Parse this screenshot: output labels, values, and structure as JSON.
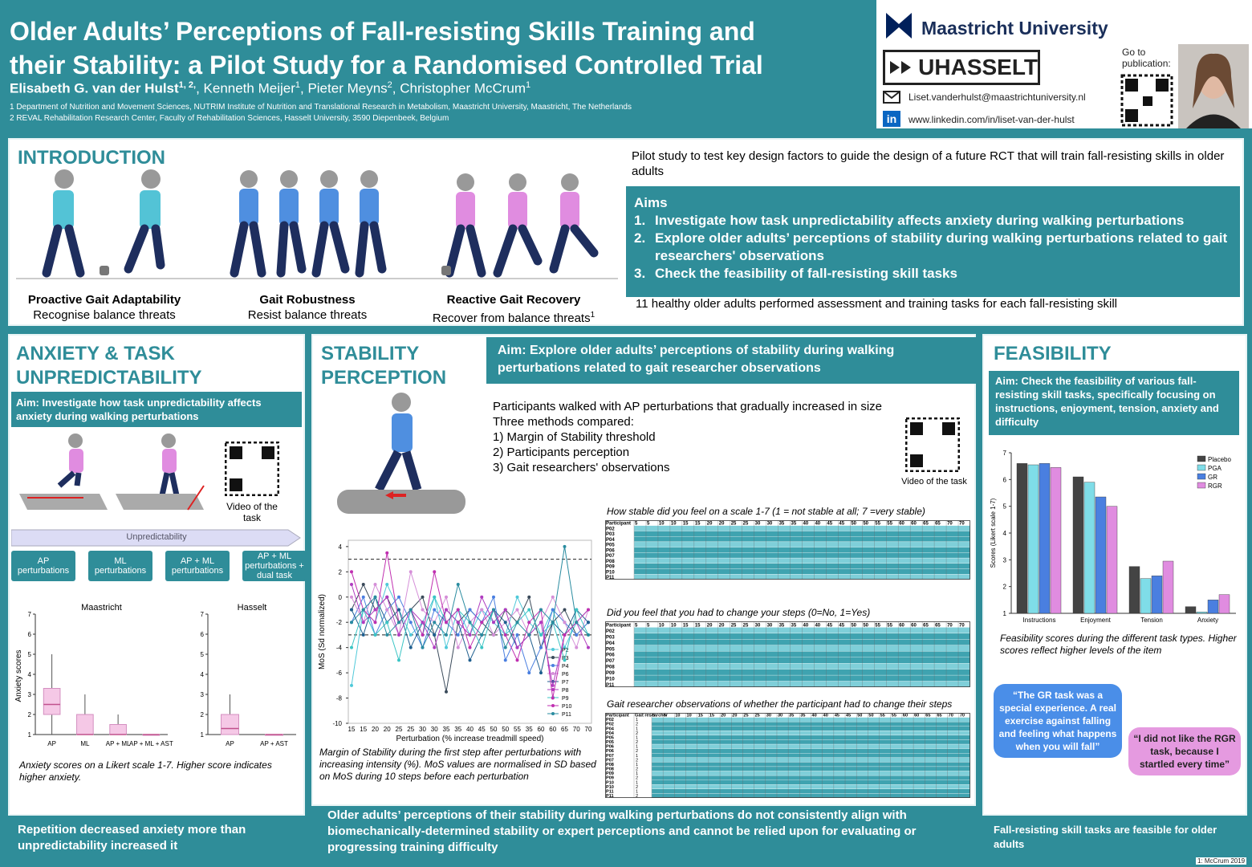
{
  "header": {
    "title": [
      "Older Adults’ Perceptions of Fall-resisting Skills Training and",
      "their Stability: a Pilot Study for a Randomised Controlled Trial"
    ],
    "authors": [
      {
        "name": "Elisabeth G. van der Hulst",
        "affiliation": "1, 2,"
      },
      {
        "name": ", Kenneth Meijer",
        "affiliation": "1"
      },
      {
        "name": ", Pieter Meyns",
        "affiliation": "2"
      },
      {
        "name": ", Christopher McCrum",
        "affiliation": "1"
      }
    ],
    "affiliations": [
      "1 Department of Nutrition and Movement Sciences, NUTRIM Institute of Nutrition and Translational Research in Metabolism, Maastricht University, Maastricht, The Netherlands",
      "2 REVAL Rehabilitation Research Center, Faculty of Rehabilitation Sciences, Hasselt University, 3590 Diepenbeek, Belgium"
    ],
    "logo_maastricht": "Maastricht University",
    "logo_hasselt": "UHASSELT",
    "email": "Liset.vanderhulst@maastrichtuniversity.nl",
    "linkedin_icon": "in",
    "linkedin": "www.linkedin.com/in/liset-van-der-hulst",
    "publication": "Go to publication:"
  },
  "introduction": {
    "heading": "INTRODUCTION",
    "skills": [
      {
        "name": "Proactive Gait Adaptability",
        "description": "Recognise balance threats"
      },
      {
        "name": "Gait Robustness",
        "description": "Resist balance threats"
      },
      {
        "name": "Reactive Gait Recovery",
        "description": "Recover from balance threats",
        "reference": "1"
      }
    ],
    "pilot": "Pilot study to test key design factors to guide the design of a future RCT that will train fall-resisting skills in older adults",
    "aims_heading": "Aims",
    "aims": [
      {
        "number": "1.",
        "text": "Investigate how task unpredictability affects anxiety during walking perturbations"
      },
      {
        "number": "2.",
        "text": "Explore older adults’ perceptions of stability during walking perturbations related to gait researchers' observations"
      },
      {
        "number": "3.",
        "text": "Check the feasibility of fall-resisting skill tasks"
      }
    ],
    "participants": "11 healthy older adults performed assessment and training tasks for each fall-resisting skill"
  },
  "anxiety": {
    "heading": "ANXIETY & TASK UNPREDICTABILITY",
    "aim": "Aim: Investigate how task unpredictability affects anxiety during walking perturbations",
    "video": "Video of the task",
    "unpredictability": "Unpredictability",
    "steps": [
      "AP perturbations",
      "ML perturbations",
      "AP + ML perturbations",
      "AP + ML perturbations + dual task"
    ],
    "ylabel": "Anxiety scores",
    "charts": [
      {
        "type": "box",
        "title": "Maastricht",
        "categories": [
          "AP",
          "ML",
          "AP + ML",
          "AP + ML + AST"
        ],
        "ylim": [
          1,
          7
        ],
        "yticks": [
          1,
          2,
          3,
          4,
          5,
          6,
          7
        ],
        "boxes": [
          {
            "min": 1,
            "q1": 2,
            "median": 2.5,
            "q3": 3.3,
            "max": 5
          },
          {
            "min": 1,
            "q1": 1,
            "median": 1,
            "q3": 2,
            "max": 3
          },
          {
            "min": 1,
            "q1": 1,
            "median": 1,
            "q3": 1.5,
            "max": 2
          },
          {
            "min": 1,
            "q1": 1,
            "median": 1,
            "q3": 1,
            "max": 1
          }
        ]
      },
      {
        "type": "box",
        "title": "Hasselt",
        "categories": [
          "AP",
          "AP + AST"
        ],
        "ylim": [
          1,
          7
        ],
        "yticks": [
          1,
          2,
          3,
          4,
          5,
          6,
          7
        ],
        "boxes": [
          {
            "min": 1,
            "q1": 1,
            "median": 1.3,
            "q3": 2,
            "max": 3
          },
          {
            "min": 1,
            "q1": 1,
            "median": 1,
            "q3": 1,
            "max": 1
          }
        ]
      }
    ],
    "caption": "Anxiety scores on a Likert scale 1-7. Higher score indicates higher anxiety.",
    "conclusion": "Repetition decreased anxiety more than unpredictability increased it"
  },
  "stability": {
    "heading": "STABILITY PERCEPTION",
    "aim": "Aim: Explore older adults’ perceptions of stability during walking perturbations related to gait researcher observations",
    "description": [
      "Participants walked with AP perturbations that gradually increased in size",
      "Three methods compared:",
      "1) Margin of Stability threshold",
      "2) Participants perception",
      "3) Gait researchers' observations"
    ],
    "video": "Video of the task",
    "chart": {
      "type": "line",
      "xlabel": "Perturbation (% increase treadmill speed)",
      "ylabel": "MoS (Sd normalized)",
      "categories": [
        "15",
        "15",
        "20",
        "20",
        "25",
        "25",
        "30",
        "30",
        "35",
        "35",
        "40",
        "45",
        "50",
        "50",
        "55",
        "35",
        "60",
        "60",
        "65",
        "70",
        "70"
      ],
      "ylim": [
        -10,
        4.5
      ],
      "yticks": [
        4,
        2,
        0,
        -2,
        -4,
        -6,
        -8,
        -10
      ],
      "thresholds": [
        3,
        -3
      ],
      "series": [
        {
          "name": "P2",
          "color": "#4fc9d9",
          "values": [
            -7,
            -1,
            -2,
            1,
            -1,
            -3,
            -2,
            0,
            -4,
            -1,
            -3,
            -1,
            -2,
            -3,
            0,
            -2,
            -3,
            -1,
            -4,
            -2,
            -1
          ]
        },
        {
          "name": "P3",
          "color": "#3a4a5a",
          "values": [
            -1,
            1,
            -1,
            0,
            -2,
            -1,
            0,
            -3,
            -7.5,
            -2,
            -1,
            -2,
            -3,
            -1,
            -2,
            0,
            -4,
            -2,
            -1,
            -3,
            -2
          ]
        },
        {
          "name": "P4",
          "color": "#4a7fe0",
          "values": [
            -2,
            0,
            -3,
            -1,
            0,
            -2,
            -4,
            -1,
            -2,
            -3,
            -1,
            -2,
            0,
            -5,
            -3,
            -6,
            -4,
            -1,
            -2,
            -3,
            -2
          ]
        },
        {
          "name": "P6",
          "color": "#d58fd8",
          "values": [
            0,
            -2,
            1,
            -1,
            -3,
            2,
            -1,
            -2,
            0,
            -4,
            -2,
            -1,
            -3,
            -2,
            -1,
            -3,
            -2,
            0,
            -2,
            -4,
            -1
          ]
        },
        {
          "name": "P7",
          "color": "#1f5f8f",
          "values": [
            -1,
            -3,
            0,
            -2,
            -1,
            -4,
            -2,
            -3,
            -1,
            -2,
            -5,
            -3,
            -1,
            -2,
            -4,
            -3,
            -6,
            -2,
            -3,
            -1,
            -2
          ]
        },
        {
          "name": "P8",
          "color": "#b03cc0",
          "values": [
            1,
            -2,
            -1,
            0,
            -3,
            -1,
            -2,
            -4,
            -1,
            -2,
            -3,
            0,
            -2,
            -1,
            -4,
            -3,
            -2,
            -7,
            -3,
            -2,
            -4
          ]
        },
        {
          "name": "P9",
          "color": "#3bc5c5",
          "values": [
            -4,
            -1,
            -3,
            -2,
            -5,
            -1,
            -3,
            0,
            -2,
            -1,
            -2,
            -4,
            -1,
            -3,
            -2,
            -1,
            -3,
            -2,
            -5,
            -1,
            -3
          ]
        },
        {
          "name": "P10",
          "color": "#c02fb0",
          "values": [
            2,
            -1,
            -2,
            3.5,
            -2,
            -1,
            -3,
            2,
            -2,
            -1,
            -4,
            -2,
            -1,
            -3,
            -5,
            -2,
            -1,
            -8,
            -3,
            -2,
            -1
          ]
        },
        {
          "name": "P11",
          "color": "#2a8ca0",
          "values": [
            -2,
            -1,
            0,
            -3,
            -2,
            -1,
            -4,
            -2,
            -3,
            1,
            -2,
            -3,
            -1,
            -4,
            -2,
            -3,
            -1,
            -2,
            4,
            -2,
            -3
          ]
        }
      ]
    },
    "caption": "Margin of Stability during the first step after perturbations with increasing intensity (%). MoS values are normalised in SD based on MoS during 10 steps before each perturbation",
    "tables": [
      {
        "title": "How stable did you feel on a scale 1-7 (1 = not stable at all; 7 =very stable)",
        "columns": [
          "Participant",
          "5",
          "5",
          "10",
          "10",
          "15",
          "15",
          "20",
          "20",
          "25",
          "25",
          "30",
          "30",
          "35",
          "35",
          "40",
          "40",
          "45",
          "45",
          "50",
          "50",
          "55",
          "55",
          "60",
          "60",
          "65",
          "65",
          "70",
          "70"
        ],
        "rows": [
          "P02",
          "P03",
          "P04",
          "P05",
          "P06",
          "P07",
          "P08",
          "P09",
          "P10",
          "P11"
        ]
      },
      {
        "title": "Did you feel that you had to change your steps (0=No, 1=Yes)",
        "columns": [
          "Participant",
          "5",
          "5",
          "10",
          "10",
          "15",
          "15",
          "20",
          "20",
          "25",
          "25",
          "30",
          "30",
          "35",
          "35",
          "40",
          "40",
          "45",
          "45",
          "50",
          "50",
          "55",
          "55",
          "60",
          "60",
          "65",
          "65",
          "70",
          "70"
        ],
        "rows": [
          "P02",
          "P03",
          "P04",
          "P05",
          "P06",
          "P07",
          "P08",
          "P09",
          "P10",
          "P11"
        ]
      },
      {
        "title": "Gait researcher observations of whether the participant had to change their steps",
        "columns": [
          "Participant",
          "Gait researcher",
          "5",
          "5",
          "10",
          "10",
          "15",
          "15",
          "20",
          "20",
          "25",
          "25",
          "30",
          "30",
          "35",
          "35",
          "40",
          "40",
          "45",
          "45",
          "50",
          "50",
          "55",
          "55",
          "60",
          "60",
          "65",
          "65",
          "70",
          "70"
        ],
        "rows": [
          "P02",
          "P02",
          "P04",
          "P04",
          "P05",
          "P05",
          "P06",
          "P06",
          "P07",
          "P07",
          "P08",
          "P08",
          "P09",
          "P09",
          "P10",
          "P10",
          "P11",
          "P11"
        ],
        "researchers": [
          "1",
          "2",
          "1",
          "2",
          "1",
          "2",
          "1",
          "2",
          "1",
          "2",
          "1",
          "2",
          "1",
          "2",
          "1",
          "2",
          "1",
          "2"
        ]
      }
    ],
    "conclusion": "Older adults’ perceptions of their stability during walking perturbations do not consistently align with biomechanically-determined stability or expert perceptions and cannot be relied upon for evaluating or progressing training difficulty"
  },
  "feasibility": {
    "heading": "FEASIBILITY",
    "aim": "Aim: Check the feasibility of various fall-resisting skill tasks, specifically focusing on instructions, enjoyment, tension, anxiety and difficulty",
    "chart": {
      "type": "bar",
      "ylabel": "Scores (Likert scale 1-7)",
      "categories": [
        "Instructions",
        "Enjoyment",
        "Tension",
        "Anxiety"
      ],
      "ylim": [
        1,
        7
      ],
      "yticks": [
        1,
        2,
        3,
        4,
        5,
        6,
        7
      ],
      "legend": "top-right",
      "series": [
        {
          "name": "Placebo",
          "color": "#444444",
          "values": [
            6.6,
            6.1,
            2.75,
            1.25
          ]
        },
        {
          "name": "PGA",
          "color": "#7fdde8",
          "values": [
            6.55,
            5.9,
            2.3,
            1.05
          ]
        },
        {
          "name": "GR",
          "color": "#4a7fe0",
          "values": [
            6.6,
            5.35,
            2.4,
            1.5
          ]
        },
        {
          "name": "RGR",
          "color": "#e08ce0",
          "values": [
            6.45,
            5.0,
            2.95,
            1.7
          ]
        }
      ]
    },
    "caption": "Feasibility scores during the different task types. Higher scores reflect higher levels of the item",
    "quotes": [
      "“The GR task was a special experience. A real exercise against falling and feeling what happens when you will fall”",
      "“I did not like the RGR task, because I startled every time”"
    ],
    "conclusion": "Fall-resisting skill tasks are feasible for older adults",
    "footnote": "1: McCrum 2019"
  }
}
